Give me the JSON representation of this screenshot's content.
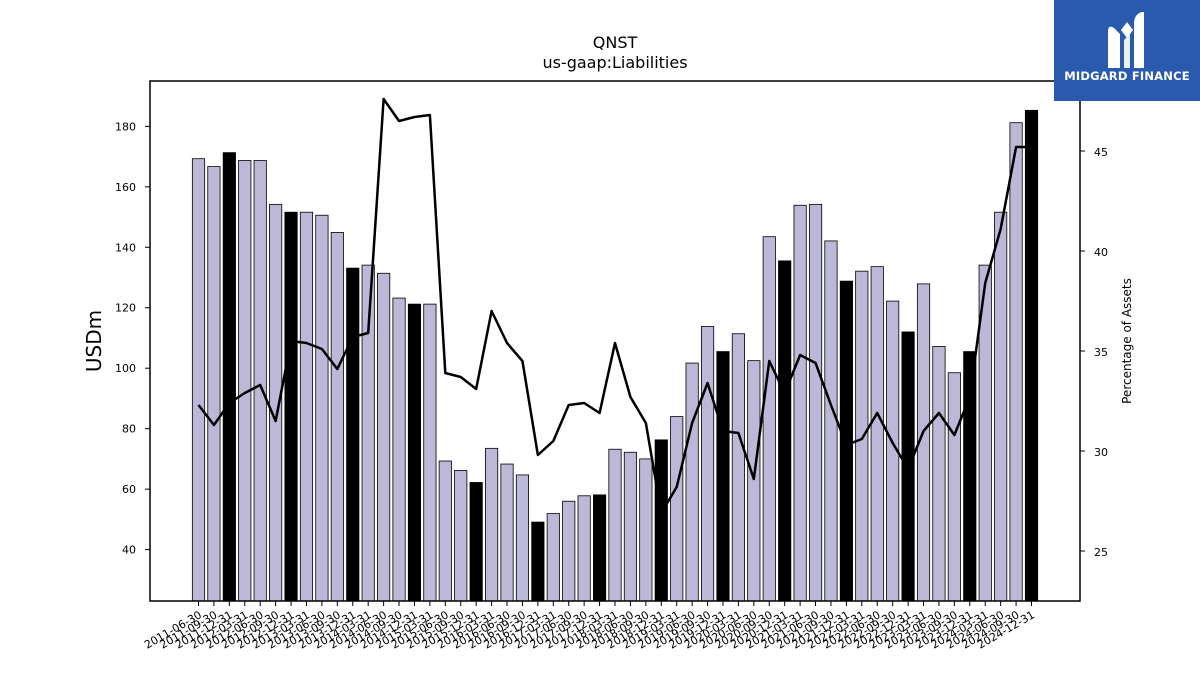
{
  "chart_data": {
    "type": "bar",
    "title": "QNST",
    "subtitle": "us-gaap:Liabilities",
    "ylabel": "USDm",
    "y2label": "Percentage of Assets",
    "ylim": [
      23,
      195
    ],
    "y2lim": [
      22.5,
      48.5
    ],
    "yticks": [
      40,
      60,
      80,
      100,
      120,
      140,
      160,
      180
    ],
    "y2ticks": [
      25,
      30,
      35,
      40,
      45
    ],
    "categories": [
      "2011-06-30",
      "2011-09-30",
      "2011-12-31",
      "2012-03-31",
      "2012-06-30",
      "2012-09-30",
      "2012-12-31",
      "2013-03-31",
      "2013-06-30",
      "2013-09-30",
      "2013-12-31",
      "2014-03-31",
      "2014-06-30",
      "2014-09-30",
      "2014-12-31",
      "2015-03-31",
      "2015-06-30",
      "2015-09-30",
      "2015-12-31",
      "2016-03-31",
      "2016-06-30",
      "2016-09-30",
      "2016-12-31",
      "2017-03-31",
      "2017-06-30",
      "2017-09-30",
      "2017-12-31",
      "2018-03-31",
      "2018-06-30",
      "2018-09-30",
      "2018-12-31",
      "2019-03-31",
      "2019-06-30",
      "2019-09-30",
      "2019-12-31",
      "2020-03-31",
      "2020-06-30",
      "2020-09-30",
      "2020-12-31",
      "2021-03-31",
      "2021-06-30",
      "2021-09-30",
      "2021-12-31",
      "2022-03-31",
      "2022-06-30",
      "2022-09-30",
      "2022-12-31",
      "2023-03-31",
      "2023-06-30",
      "2023-09-30",
      "2023-12-31",
      "2024-03-31",
      "2024-06-30",
      "2024-09-30",
      "2024-12-31"
    ],
    "xtick_labels": [
      "2011-06-30",
      "2011-09-30",
      "2011-12-31",
      "2012-03-31",
      "2012-06-30",
      "2012-09-30",
      "2012-12-31",
      "2013-03-31",
      "2013-06-30",
      "2013-09-30",
      "2013-12-31",
      "2014-03-31",
      "2014-06-30",
      "2014-09-30",
      "2014-12-31",
      "2015-03-31",
      "2015-06-30",
      "2015-09-30",
      "2015-12-31",
      "2016-03-31",
      "2016-06-30",
      "2016-09-30",
      "2016-12-31",
      "2017-03-31",
      "2017-06-30",
      "2017-09-30",
      "2017-12-31",
      "2018-03-31",
      "2018-06-30",
      "2018-09-30",
      "2018-12-31",
      "2019-03-31",
      "2019-06-30",
      "2019-09-30",
      "2019-12-31",
      "2020-03-31",
      "2020-06-30",
      "2020-09-30",
      "2020-12-31",
      "2021-03-31",
      "2021-06-30",
      "2021-09-30",
      "2021-12-31",
      "2022-03-31",
      "2022-06-30",
      "2022-09-30",
      "2022-12-31",
      "2023-03-31",
      "2023-06-30",
      "2023-09-30",
      "2023-12-31",
      "2024-03-31",
      "2024-06-30",
      "2024-09-30",
      "2024-12-31"
    ],
    "values": [
      169.3,
      166.7,
      171.3,
      168.7,
      168.7,
      154.2,
      151.6,
      151.6,
      150.6,
      144.9,
      133.1,
      134.1,
      131.4,
      123.2,
      121.2,
      121.2,
      69.3,
      66.2,
      62.2,
      73.5,
      68.3,
      64.7,
      49.1,
      51.9,
      56.0,
      57.8,
      58.1,
      73.2,
      72.2,
      70.0,
      76.3,
      84.0,
      101.7,
      113.8,
      105.5,
      111.4,
      102.5,
      143.5,
      135.5,
      153.9,
      154.2,
      142.1,
      128.8,
      132.1,
      133.6,
      122.2,
      112.0,
      127.9,
      107.2,
      98.5,
      105.5,
      134.1,
      151.6,
      181.2,
      185.3
    ],
    "highlight": [
      false,
      false,
      true,
      false,
      false,
      false,
      true,
      false,
      false,
      false,
      true,
      false,
      false,
      false,
      true,
      false,
      false,
      false,
      true,
      false,
      false,
      false,
      true,
      false,
      false,
      false,
      true,
      false,
      false,
      false,
      true,
      false,
      false,
      false,
      true,
      false,
      false,
      false,
      true,
      false,
      false,
      false,
      true,
      false,
      false,
      false,
      true,
      false,
      false,
      false,
      true,
      false,
      false,
      false,
      true
    ],
    "line_values": [
      32.3,
      31.3,
      32.4,
      32.9,
      33.3,
      31.5,
      35.5,
      35.4,
      35.1,
      34.1,
      35.7,
      35.9,
      47.6,
      46.5,
      46.7,
      46.8,
      33.9,
      33.7,
      33.1,
      37.0,
      35.4,
      34.5,
      29.8,
      30.5,
      32.3,
      32.4,
      31.9,
      35.4,
      32.7,
      31.4,
      26.9,
      28.2,
      31.4,
      33.4,
      31.0,
      30.9,
      28.6,
      34.5,
      32.9,
      34.8,
      34.4,
      32.3,
      30.3,
      30.6,
      31.9,
      30.4,
      29.1,
      31.0,
      31.9,
      30.8,
      32.7,
      38.4,
      41.1,
      45.2,
      45.2
    ],
    "colors": {
      "bar": "#bcb8d8",
      "bar_highlight": "#000000",
      "bar_edge": "#000000",
      "line": "#000000"
    },
    "grid": false,
    "legend": "none"
  },
  "brand": {
    "name": "MIDGARD FINANCE",
    "color": "#2a5aae"
  }
}
